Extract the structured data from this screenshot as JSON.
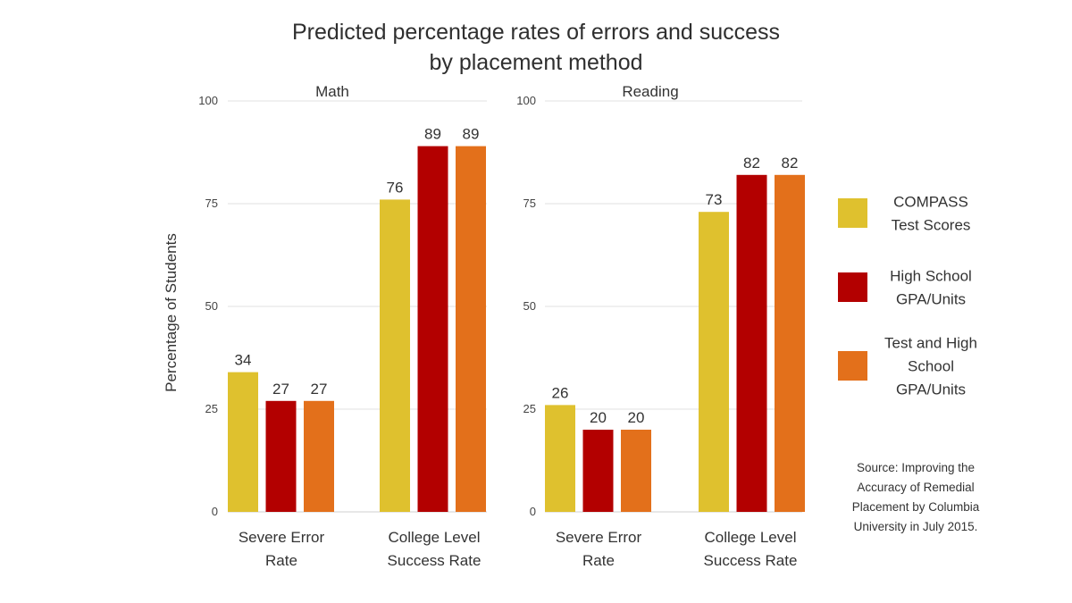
{
  "chart_data": {
    "type": "bar",
    "title_lines": [
      "Predicted percentage rates of errors and success",
      "by placement method"
    ],
    "ylabel": "Percentage of Students",
    "ylim": [
      0,
      100
    ],
    "yticks": [
      0,
      25,
      50,
      75,
      100
    ],
    "categories": [
      {
        "lines": [
          "Severe Error",
          "Rate"
        ]
      },
      {
        "lines": [
          "College Level",
          "Success Rate"
        ]
      }
    ],
    "colors": {
      "COMPASS Test Scores": "#dfc12e",
      "High School GPA/Units": "#b30000",
      "Test and High School GPA/Units": "#e3701b"
    },
    "panels": [
      {
        "title": "Math",
        "series": [
          {
            "name": "COMPASS Test Scores",
            "values": [
              34,
              76
            ]
          },
          {
            "name": "High School GPA/Units",
            "values": [
              27,
              89
            ]
          },
          {
            "name": "Test and High School GPA/Units",
            "values": [
              27,
              89
            ]
          }
        ]
      },
      {
        "title": "Reading",
        "series": [
          {
            "name": "COMPASS Test Scores",
            "values": [
              26,
              73
            ]
          },
          {
            "name": "High School GPA/Units",
            "values": [
              20,
              82
            ]
          },
          {
            "name": "Test and High School GPA/Units",
            "values": [
              20,
              82
            ]
          }
        ]
      }
    ],
    "legend": [
      {
        "name": "COMPASS Test Scores",
        "lines": [
          "COMPASS",
          "Test Scores"
        ]
      },
      {
        "name": "High School GPA/Units",
        "lines": [
          "High School",
          "GPA/Units"
        ]
      },
      {
        "name": "Test and High School GPA/Units",
        "lines": [
          "Test and High",
          "School",
          "GPA/Units"
        ]
      }
    ],
    "source_lines": [
      "Source: Improving the",
      "Accuracy of Remedial",
      "Placement by Columbia",
      "University in July 2015."
    ]
  }
}
